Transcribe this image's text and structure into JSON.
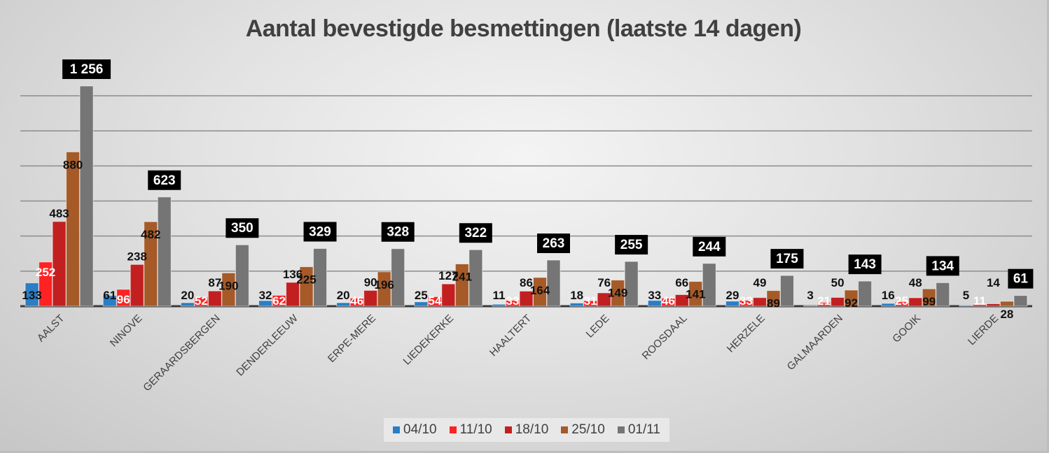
{
  "chart_data": {
    "type": "bar",
    "title": "Aantal bevestigde besmettingen (laatste 14 dagen)",
    "xlabel": "",
    "ylabel": "",
    "ylim": [
      0,
      1250
    ],
    "y_gridlines": [
      200,
      400,
      600,
      800,
      1000,
      1200
    ],
    "y_tick_labels_visible": false,
    "grid": true,
    "legend_position": "bottom",
    "categories": [
      "AALST",
      "NINOVE",
      "GERAARDSBERGEN",
      "DENDERLEEUW",
      "ERPE-MERE",
      "LIEDEKERKE",
      "HAALTERT",
      "LEDE",
      "ROOSDAAL",
      "HERZELE",
      "GALMAARDEN",
      "GOOIK",
      "LIERDE"
    ],
    "series": [
      {
        "name": "04/10",
        "color": "#2a7ec6",
        "label_style": "black",
        "values": [
          133,
          61,
          20,
          32,
          20,
          25,
          11,
          18,
          33,
          29,
          3,
          16,
          5
        ]
      },
      {
        "name": "11/10",
        "color": "#ff2222",
        "label_style": "white",
        "values": [
          252,
          96,
          52,
          62,
          46,
          54,
          33,
          31,
          46,
          33,
          21,
          25,
          11
        ]
      },
      {
        "name": "18/10",
        "color": "#c22020",
        "label_style": "black",
        "values": [
          483,
          238,
          87,
          136,
          90,
          127,
          86,
          76,
          66,
          49,
          50,
          48,
          14
        ]
      },
      {
        "name": "25/10",
        "color": "#a55a28",
        "label_style": "black",
        "values": [
          880,
          482,
          190,
          225,
          196,
          241,
          164,
          149,
          141,
          89,
          92,
          99,
          28
        ]
      },
      {
        "name": "01/11",
        "color": "#757575",
        "label_style": "boxed",
        "values": [
          1256,
          623,
          350,
          329,
          328,
          322,
          263,
          255,
          244,
          175,
          143,
          134,
          61
        ]
      }
    ],
    "display_labels": {
      "01/11": [
        "1 256",
        "623",
        "350",
        "329",
        "328",
        "322",
        "263",
        "255",
        "244",
        "175",
        "143",
        "134",
        "61"
      ]
    }
  }
}
